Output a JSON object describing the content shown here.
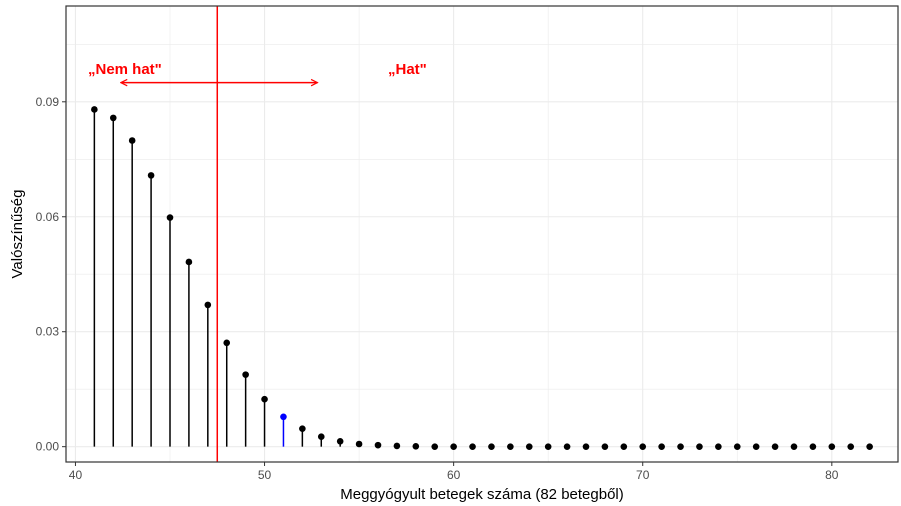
{
  "chart_data": {
    "type": "lollipop",
    "xlabel": "Meggyógyult betegek száma (82 betegből)",
    "ylabel": "Valószínűség",
    "xlim": [
      39.5,
      83.5
    ],
    "ylim": [
      -0.004,
      0.115
    ],
    "x_ticks": [
      40,
      50,
      60,
      70,
      80
    ],
    "y_ticks": [
      0.0,
      0.03,
      0.06,
      0.09
    ],
    "y_tick_labels": [
      "0.00",
      "0.03",
      "0.06",
      "0.09"
    ],
    "x_tick_labels": [
      "40",
      "50",
      "60",
      "70",
      "80"
    ],
    "grid": true,
    "x": [
      41,
      42,
      43,
      44,
      45,
      46,
      47,
      48,
      49,
      50,
      51,
      52,
      53,
      54,
      55,
      56,
      57,
      58,
      59,
      60,
      61,
      62,
      63,
      64,
      65,
      66,
      67,
      68,
      69,
      70,
      71,
      72,
      73,
      74,
      75,
      76,
      77,
      78,
      79,
      80,
      81,
      82
    ],
    "values": [
      0.088,
      0.0858,
      0.0799,
      0.0708,
      0.0598,
      0.0482,
      0.037,
      0.0271,
      0.0188,
      0.0124,
      0.0078,
      0.0047,
      0.0026,
      0.0014,
      0.0007,
      0.0004,
      0.0002,
      0.0001,
      0.0,
      0.0,
      0.0,
      0.0,
      0.0,
      0.0,
      0.0,
      0.0,
      0.0,
      0.0,
      0.0,
      0.0,
      0.0,
      0.0,
      0.0,
      0.0,
      0.0,
      0.0,
      0.0,
      0.0,
      0.0,
      0.0,
      0.0,
      0.0
    ],
    "highlight_x": 51,
    "highlight_color": "#0000ff",
    "point_color": "#000000",
    "threshold_x": 47.5,
    "threshold_color": "#ff0000",
    "annotations": {
      "left_text": "„Nem hat\"",
      "right_text": "„Hat\"",
      "color": "#ff0000",
      "arrow": {
        "from_x": 42.4,
        "to_x": 52.8,
        "y": 0.095
      }
    }
  }
}
